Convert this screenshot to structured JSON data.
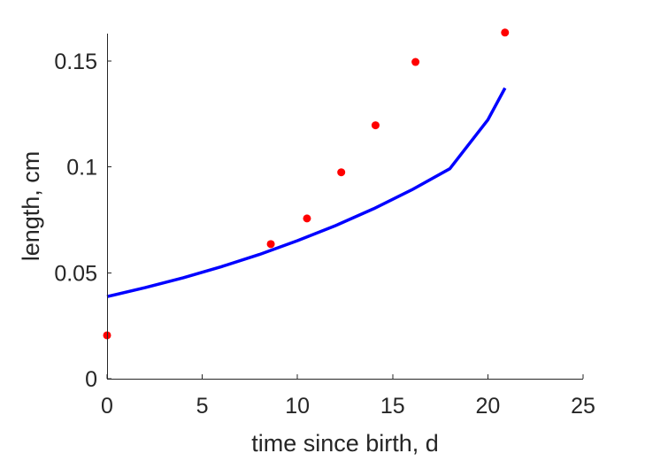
{
  "chart_data": {
    "type": "scatter",
    "xlabel": "time since birth, d",
    "ylabel": "length, cm",
    "xlim": [
      0,
      25
    ],
    "ylim": [
      0,
      0.163
    ],
    "xticks": [
      0,
      5,
      10,
      15,
      20,
      25
    ],
    "xtick_labels": [
      "0",
      "5",
      "10",
      "15",
      "20",
      "25"
    ],
    "yticks": [
      0,
      0.05,
      0.1,
      0.15
    ],
    "ytick_labels": [
      "0",
      "0.05",
      "0.1",
      "0.15"
    ],
    "grid": false,
    "legend": "none",
    "colors": {
      "points": "#ff0000",
      "fit_line": "#0000ff",
      "axes": "#262626"
    },
    "series": [
      {
        "kind": "scatter",
        "color": "#ff0000",
        "points": [
          {
            "x": 0,
            "y": 0.0205
          },
          {
            "x": 8.6,
            "y": 0.0636
          },
          {
            "x": 10.5,
            "y": 0.0757
          },
          {
            "x": 12.3,
            "y": 0.0975
          },
          {
            "x": 14.1,
            "y": 0.1197
          },
          {
            "x": 16.2,
            "y": 0.1496
          },
          {
            "x": 20.9,
            "y": 0.1635
          }
        ]
      },
      {
        "kind": "line",
        "color": "#0000ff",
        "points": [
          {
            "x": 0,
            "y": 0.0388
          },
          {
            "x": 2,
            "y": 0.043
          },
          {
            "x": 4,
            "y": 0.0477
          },
          {
            "x": 6,
            "y": 0.0529
          },
          {
            "x": 8,
            "y": 0.0587
          },
          {
            "x": 10,
            "y": 0.0652
          },
          {
            "x": 12,
            "y": 0.0723
          },
          {
            "x": 14,
            "y": 0.0803
          },
          {
            "x": 16,
            "y": 0.0892
          },
          {
            "x": 18,
            "y": 0.0992
          },
          {
            "x": 20,
            "y": 0.1223
          },
          {
            "x": 20.9,
            "y": 0.1373
          }
        ]
      }
    ]
  }
}
